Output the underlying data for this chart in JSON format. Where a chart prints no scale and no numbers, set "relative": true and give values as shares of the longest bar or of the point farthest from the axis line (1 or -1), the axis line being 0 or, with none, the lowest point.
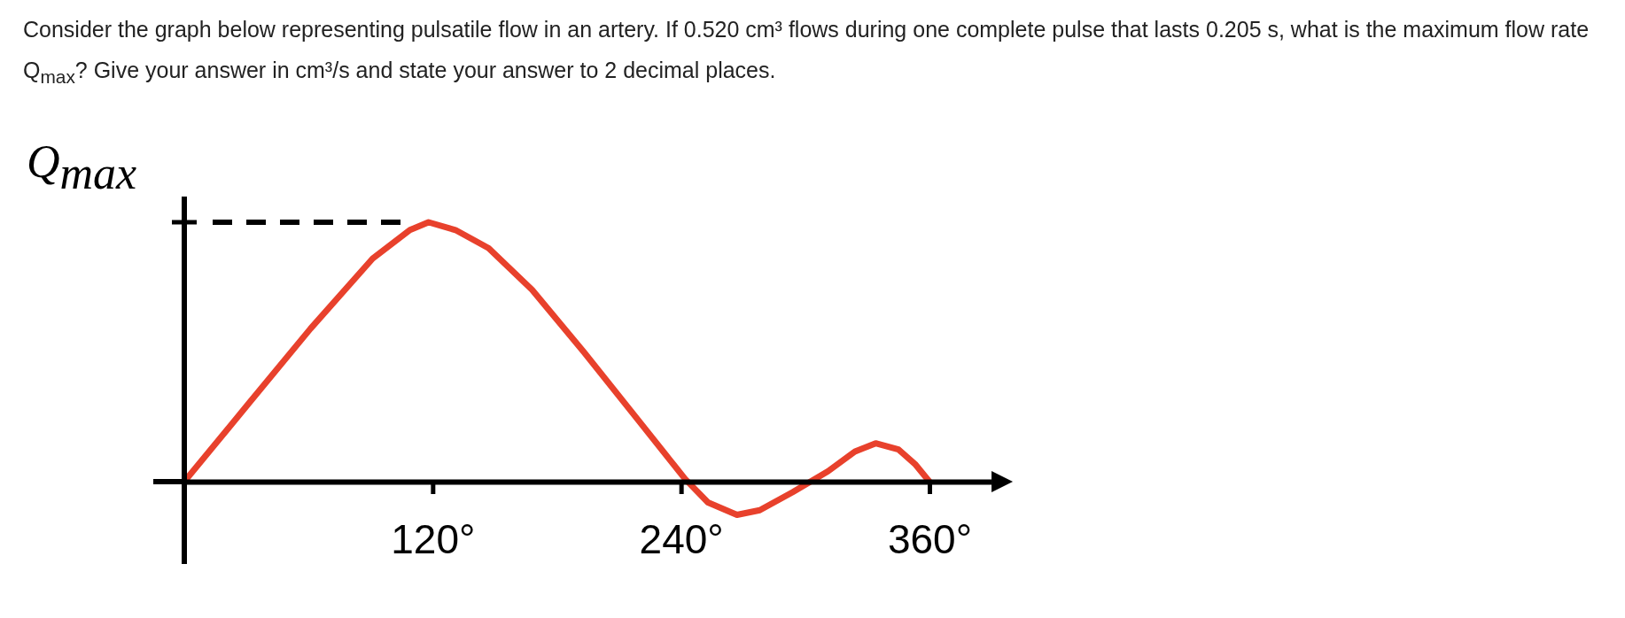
{
  "chart_data": {
    "type": "line",
    "title": "Consider the graph below representing pulsatile flow in an artery. If 0.520 cm³ flows during one complete pulse that lasts 0.205 s, what is the maximum flow rate Q$_{max}$? Give your answer in cm³/s and state your answer to 2 decimal places.",
    "relative": true,
    "x": [
      0,
      31,
      61,
      91,
      109,
      118,
      131,
      147,
      168,
      193,
      219,
      235,
      242,
      253,
      267,
      278,
      294,
      311,
      324,
      334,
      345,
      353,
      360
    ],
    "series": [
      {
        "color": "#e8412c",
        "values": [
          0,
          0.3,
          0.59,
          0.86,
          0.97,
          1,
          0.97,
          0.9,
          0.74,
          0.5,
          0.24,
          0.08,
          0.01,
          -0.08,
          -0.128,
          -0.11,
          -0.04,
          0.04,
          0.116,
          0.148,
          0.124,
          0.068,
          0
        ]
      }
    ],
    "xlim": [
      0,
      390
    ],
    "xticks": [
      {
        "value": 120,
        "label": "120°"
      },
      {
        "value": 240,
        "label": "240°"
      },
      {
        "value": 360,
        "label": "360°"
      }
    ],
    "ref_lines": [
      {
        "axis": "y",
        "value": 1,
        "label": "Q$_{max}$",
        "line_style": "dashed",
        "color": "#000000"
      }
    ]
  }
}
